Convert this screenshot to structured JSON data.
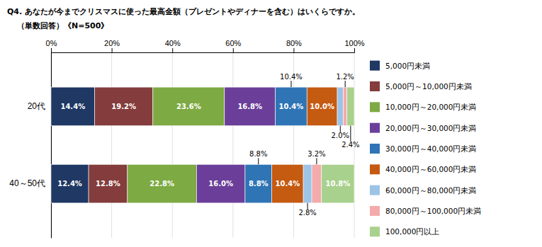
{
  "chart_data": {
    "type": "bar",
    "orientation": "horizontal",
    "stacked": true,
    "title": "Q4. あなたが今までクリスマスに使った最高金額（プレゼントやディナーを含む）はいくらですか。",
    "subtitle": "（単数回答）《N=500》",
    "categories": [
      "20代",
      "40～50代"
    ],
    "series": [
      {
        "name": "5,000円未満",
        "color": "#1F3864",
        "values": [
          14.4,
          12.4
        ],
        "value_labels": [
          "14.4%",
          "12.4%"
        ]
      },
      {
        "name": "5,000円～10,000円未満",
        "color": "#843C3C",
        "values": [
          19.2,
          12.8
        ],
        "value_labels": [
          "19.2%",
          "12.8%"
        ]
      },
      {
        "name": "10,000円～20,000円未満",
        "color": "#7DAA43",
        "values": [
          23.6,
          22.8
        ],
        "value_labels": [
          "23.6%",
          "22.8%"
        ]
      },
      {
        "name": "20,000円～30,000円未満",
        "color": "#6B3F99",
        "values": [
          16.8,
          16.0
        ],
        "value_labels": [
          "16.8%",
          "16.0%"
        ]
      },
      {
        "name": "30,000円～40,000円未満",
        "color": "#2F75B5",
        "values": [
          10.4,
          8.8
        ],
        "value_labels": [
          "10.4%",
          "8.8%"
        ]
      },
      {
        "name": "40,000円～60,000円未満",
        "color": "#C55A11",
        "values": [
          10.0,
          10.4
        ],
        "value_labels": [
          "10.0%",
          "10.4%"
        ]
      },
      {
        "name": "60,000円～80,000円未満",
        "color": "#9DC3E6",
        "values": [
          2.0,
          2.8
        ],
        "value_labels": [
          null,
          null
        ]
      },
      {
        "name": "80,000円～100,000円未満",
        "color": "#F4ABAB",
        "values": [
          1.2,
          3.2
        ],
        "value_labels": [
          null,
          null
        ]
      },
      {
        "name": "100,000円以上",
        "color": "#A9D18E",
        "values": [
          2.4,
          10.8
        ],
        "value_labels": [
          null,
          "10.8%"
        ]
      }
    ],
    "annotations": [
      {
        "text": "10.4%",
        "series": "30,000円～40,000円未満",
        "category": "20代",
        "position": "above"
      },
      {
        "text": "1.2%",
        "series": "80,000円～100,000円未満",
        "category": "20代",
        "position": "above"
      },
      {
        "text": "2.0%",
        "series": "60,000円～80,000円未満",
        "category": "20代",
        "position": "below"
      },
      {
        "text": "2.4%",
        "series": "100,000円以上",
        "category": "20代",
        "position": "below"
      },
      {
        "text": "8.8%",
        "series": "30,000円～40,000円未満",
        "category": "40～50代",
        "position": "above"
      },
      {
        "text": "3.2%",
        "series": "80,000円～100,000円未満",
        "category": "40～50代",
        "position": "above"
      },
      {
        "text": "2.8%",
        "series": "60,000円～80,000円未満",
        "category": "40～50代",
        "position": "below"
      }
    ],
    "data_labels": true,
    "xlim": [
      0,
      100
    ],
    "xticks": [
      {
        "value": 0,
        "label": "0%"
      },
      {
        "value": 20,
        "label": "20%"
      },
      {
        "value": 40,
        "label": "40%"
      },
      {
        "value": 60,
        "label": "60%"
      },
      {
        "value": 80,
        "label": "80%"
      },
      {
        "value": 100,
        "label": "100%"
      }
    ],
    "grid": true
  }
}
